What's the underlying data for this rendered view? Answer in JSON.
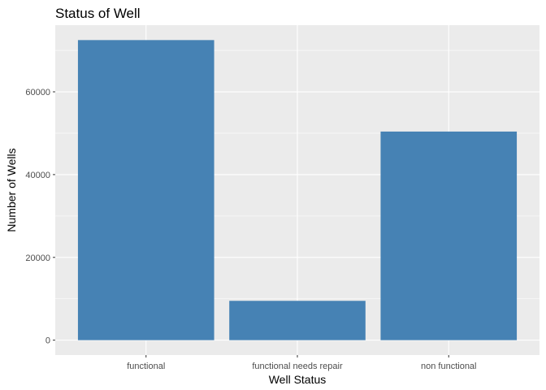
{
  "chart_data": {
    "type": "bar",
    "title": "Status of Well",
    "xlabel": "Well Status",
    "ylabel": "Number of Wells",
    "categories": [
      "functional",
      "functional needs repair",
      "non functional"
    ],
    "values": [
      72500,
      9500,
      50400
    ],
    "ylim": [
      -3600,
      76100
    ],
    "yticks": [
      0,
      20000,
      40000,
      60000
    ],
    "ytick_labels": [
      "0",
      "20000",
      "40000",
      "60000"
    ],
    "bar_color": "#4682b4",
    "panel_background": "#ebebeb",
    "grid": true,
    "legend": "none"
  }
}
